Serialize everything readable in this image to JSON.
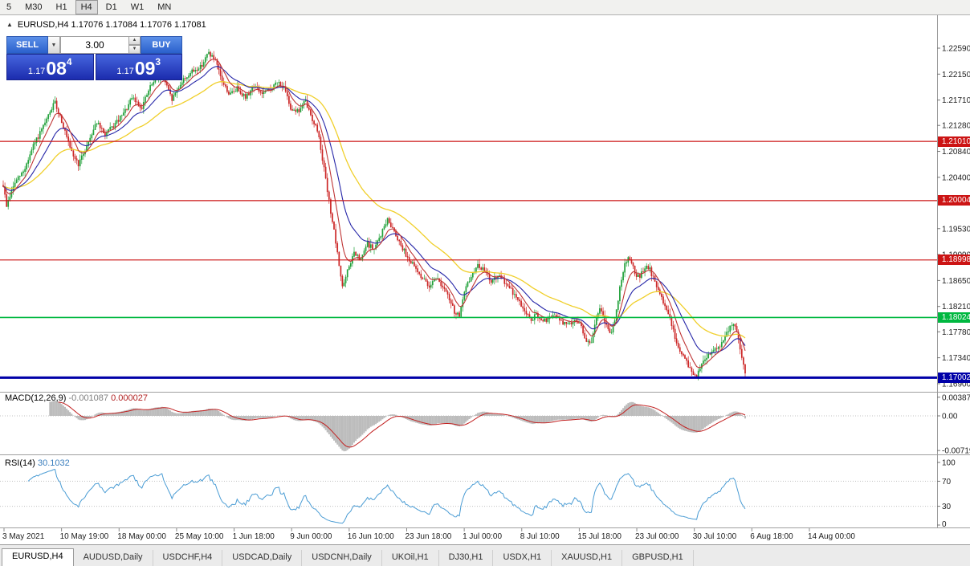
{
  "toolbar": {
    "periods": [
      {
        "label": "5",
        "active": false
      },
      {
        "label": "M30",
        "active": false
      },
      {
        "label": "H1",
        "active": false
      },
      {
        "label": "H4",
        "active": true
      },
      {
        "label": "D1",
        "active": false
      },
      {
        "label": "W1",
        "active": false
      },
      {
        "label": "MN",
        "active": false
      }
    ]
  },
  "chart_header": {
    "collapse_icon": "▲",
    "title": "EURUSD,H4 1.17076 1.17084 1.17076 1.17081"
  },
  "one_click": {
    "sell_label": "SELL",
    "buy_label": "BUY",
    "volume": "3.00",
    "dropdown_icon": "▼",
    "spin_up": "▲",
    "spin_down": "▼",
    "sell_price": {
      "prefix": "1.17",
      "big": "08",
      "sup": "4"
    },
    "buy_price": {
      "prefix": "1.17",
      "big": "09",
      "sup": "3"
    }
  },
  "price_axis": {
    "labels": [
      "1.22590",
      "1.22150",
      "1.21710",
      "1.21280",
      "1.20840",
      "1.20400",
      "1.19530",
      "1.19090",
      "1.18650",
      "1.18210",
      "1.17780",
      "1.17340",
      "1.16900"
    ]
  },
  "levels": [
    {
      "label": "1.21010",
      "value": 1.2101,
      "color": "#cc1414",
      "line_width": 1.2
    },
    {
      "label": "1.20004",
      "value": 1.20004,
      "color": "#cc1414",
      "line_width": 1.2
    },
    {
      "label": "1.18998",
      "value": 1.18998,
      "color": "#cc1414",
      "line_width": 1.2
    },
    {
      "label": "1.18024",
      "value": 1.18024,
      "color": "#00b840",
      "line_width": 1.6
    },
    {
      "label": "1.17002",
      "value": 1.17002,
      "color": "#0000a8",
      "line_width": 3
    }
  ],
  "indicators": {
    "macd": {
      "name": "MACD(12,26,9)",
      "value_main": "-0.001087",
      "value_signal": "0.000027",
      "axis_labels": [
        {
          "text": "0.003873",
          "value": 0.003873
        },
        {
          "text": "0.00",
          "value": 0
        },
        {
          "text": "-0.007195",
          "value": -0.007195
        }
      ]
    },
    "rsi": {
      "name": "RSI(14)",
      "value": "30.1032",
      "axis_labels": [
        {
          "text": "100",
          "value": 100
        },
        {
          "text": "70",
          "value": 70
        },
        {
          "text": "30",
          "value": 30
        },
        {
          "text": "0",
          "value": 0
        }
      ],
      "guide_levels": [
        70,
        30
      ]
    }
  },
  "time_axis": {
    "labels": [
      "3 May 2021",
      "10 May 19:00",
      "18 May 00:00",
      "25 May 10:00",
      "1 Jun 18:00",
      "9 Jun 00:00",
      "16 Jun 10:00",
      "23 Jun 18:00",
      "1 Jul 00:00",
      "8 Jul 10:00",
      "15 Jul 18:00",
      "23 Jul 00:00",
      "30 Jul 10:00",
      "6 Aug 18:00",
      "14 Aug 00:00"
    ]
  },
  "tabs": [
    {
      "label": "EURUSD,H4",
      "active": true
    },
    {
      "label": "AUDUSD,Daily",
      "active": false
    },
    {
      "label": "USDCHF,H4",
      "active": false
    },
    {
      "label": "USDCAD,Daily",
      "active": false
    },
    {
      "label": "USDCNH,Daily",
      "active": false
    },
    {
      "label": "UKOil,H1",
      "active": false
    },
    {
      "label": "DJ30,H1",
      "active": false
    },
    {
      "label": "USDX,H1",
      "active": false
    },
    {
      "label": "XAUUSD,H1",
      "active": false
    },
    {
      "label": "GBPUSD,H1",
      "active": false
    }
  ],
  "chart_data": {
    "type": "candlestick",
    "symbol": "EURUSD",
    "timeframe": "H4",
    "ohlc_current": {
      "open": 1.17076,
      "high": 1.17084,
      "low": 1.17076,
      "close": 1.17081
    },
    "bid": "1.17084",
    "ask": "1.17093",
    "candle_colors": {
      "up": "#21a13a",
      "down": "#cc2626"
    },
    "moving_averages": [
      {
        "period": 55,
        "color": "#f0cf2a",
        "width": 1.3
      },
      {
        "period": 22,
        "color": "#2626a8",
        "width": 1.1
      },
      {
        "period": 9,
        "color": "#bf3535",
        "width": 1.1
      }
    ],
    "macd_params": [
      12,
      26,
      9
    ],
    "rsi_params": 14,
    "price_path": [
      [
        0,
        1.2062
      ],
      [
        8,
        1.1992
      ],
      [
        18,
        1.203
      ],
      [
        30,
        1.2052
      ],
      [
        42,
        1.2095
      ],
      [
        55,
        1.2128
      ],
      [
        68,
        1.2168
      ],
      [
        76,
        1.214
      ],
      [
        88,
        1.2085
      ],
      [
        98,
        1.2062
      ],
      [
        110,
        1.21
      ],
      [
        120,
        1.2135
      ],
      [
        130,
        1.2112
      ],
      [
        142,
        1.2128
      ],
      [
        154,
        1.2148
      ],
      [
        165,
        1.2175
      ],
      [
        176,
        1.2158
      ],
      [
        188,
        1.2196
      ],
      [
        202,
        1.2215
      ],
      [
        214,
        1.2172
      ],
      [
        226,
        1.2202
      ],
      [
        238,
        1.2218
      ],
      [
        250,
        1.2228
      ],
      [
        260,
        1.2252
      ],
      [
        268,
        1.2238
      ],
      [
        276,
        1.2205
      ],
      [
        286,
        1.218
      ],
      [
        296,
        1.2192
      ],
      [
        306,
        1.2175
      ],
      [
        316,
        1.2196
      ],
      [
        326,
        1.2182
      ],
      [
        336,
        1.2188
      ],
      [
        346,
        1.2202
      ],
      [
        354,
        1.219
      ],
      [
        362,
        1.2158
      ],
      [
        372,
        1.2152
      ],
      [
        380,
        1.217
      ],
      [
        388,
        1.2142
      ],
      [
        396,
        1.2118
      ],
      [
        403,
        1.206
      ],
      [
        409,
        1.2005
      ],
      [
        415,
        1.1958
      ],
      [
        421,
        1.1902
      ],
      [
        427,
        1.1852
      ],
      [
        433,
        1.1882
      ],
      [
        441,
        1.1912
      ],
      [
        449,
        1.1898
      ],
      [
        457,
        1.1928
      ],
      [
        466,
        1.1918
      ],
      [
        474,
        1.1942
      ],
      [
        482,
        1.1968
      ],
      [
        489,
        1.1955
      ],
      [
        497,
        1.1932
      ],
      [
        507,
        1.1906
      ],
      [
        517,
        1.1886
      ],
      [
        527,
        1.1868
      ],
      [
        534,
        1.1855
      ],
      [
        542,
        1.1872
      ],
      [
        550,
        1.1858
      ],
      [
        558,
        1.1838
      ],
      [
        566,
        1.1812
      ],
      [
        572,
        1.1806
      ],
      [
        580,
        1.1852
      ],
      [
        588,
        1.1876
      ],
      [
        596,
        1.1892
      ],
      [
        604,
        1.188
      ],
      [
        612,
        1.1864
      ],
      [
        620,
        1.1872
      ],
      [
        628,
        1.1864
      ],
      [
        636,
        1.185
      ],
      [
        644,
        1.1834
      ],
      [
        652,
        1.1818
      ],
      [
        660,
        1.1798
      ],
      [
        668,
        1.1806
      ],
      [
        676,
        1.1794
      ],
      [
        684,
        1.1802
      ],
      [
        692,
        1.1806
      ],
      [
        700,
        1.1794
      ],
      [
        708,
        1.179
      ],
      [
        716,
        1.18
      ],
      [
        724,
        1.1788
      ],
      [
        730,
        1.1762
      ],
      [
        736,
        1.1756
      ],
      [
        742,
        1.18
      ],
      [
        748,
        1.1818
      ],
      [
        754,
        1.1792
      ],
      [
        760,
        1.1774
      ],
      [
        766,
        1.18
      ],
      [
        772,
        1.1852
      ],
      [
        778,
        1.1896
      ],
      [
        784,
        1.1906
      ],
      [
        790,
        1.188
      ],
      [
        796,
        1.187
      ],
      [
        802,
        1.1884
      ],
      [
        808,
        1.1888
      ],
      [
        814,
        1.1868
      ],
      [
        820,
        1.1846
      ],
      [
        826,
        1.183
      ],
      [
        832,
        1.1812
      ],
      [
        838,
        1.1782
      ],
      [
        844,
        1.1752
      ],
      [
        850,
        1.174
      ],
      [
        856,
        1.1724
      ],
      [
        862,
        1.1708
      ],
      [
        868,
        1.1704
      ],
      [
        874,
        1.1722
      ],
      [
        880,
        1.1736
      ],
      [
        886,
        1.1746
      ],
      [
        892,
        1.1752
      ],
      [
        898,
        1.1758
      ],
      [
        904,
        1.1772
      ],
      [
        910,
        1.179
      ],
      [
        915,
        1.1793
      ],
      [
        919,
        1.1772
      ],
      [
        923,
        1.1738
      ],
      [
        928,
        1.1708
      ]
    ]
  }
}
